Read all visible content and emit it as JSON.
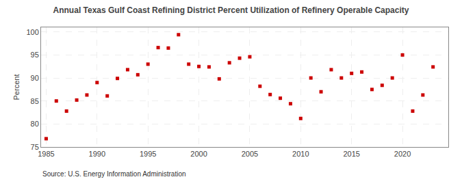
{
  "chart_data": {
    "type": "scatter",
    "title": "Annual Texas Gulf Coast Refining District Percent Utilization of Refinery Operable Capacity",
    "ylabel": "Percent",
    "annotations": [
      "Source: U.S. Energy Information Administration"
    ],
    "x": [
      1985,
      1986,
      1987,
      1988,
      1989,
      1990,
      1991,
      1992,
      1993,
      1994,
      1995,
      1996,
      1997,
      1998,
      1999,
      2000,
      2001,
      2002,
      2003,
      2004,
      2005,
      2006,
      2007,
      2008,
      2009,
      2010,
      2011,
      2012,
      2013,
      2014,
      2015,
      2016,
      2017,
      2018,
      2019,
      2020,
      2021,
      2022,
      2023
    ],
    "values": [
      76.8,
      85.0,
      82.8,
      85.2,
      86.3,
      89.0,
      86.1,
      89.9,
      91.8,
      90.7,
      93.0,
      96.6,
      96.5,
      99.4,
      93.0,
      92.5,
      92.4,
      89.8,
      93.3,
      94.3,
      94.6,
      88.2,
      86.4,
      85.6,
      84.4,
      81.2,
      90.0,
      87.0,
      91.8,
      90.0,
      91.0,
      91.3,
      87.5,
      88.4,
      90.0,
      95.0,
      82.8,
      86.3,
      92.4
    ],
    "color": "#cc0000",
    "marker": "square",
    "xlim": [
      1984.5,
      2024.5
    ],
    "ylim": [
      75,
      101
    ],
    "xticks": [
      1985,
      1990,
      1995,
      2000,
      2005,
      2010,
      2015,
      2020
    ],
    "yticks": [
      75,
      80,
      85,
      90,
      95,
      100
    ],
    "grid": true
  }
}
